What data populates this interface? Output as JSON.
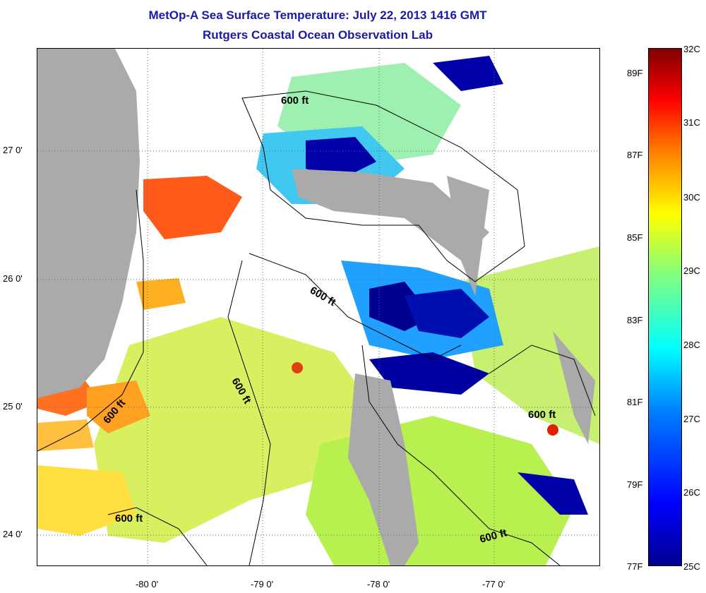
{
  "header": {
    "title": "MetOp-A Sea Surface Temperature:  July 22, 2013 1416 GMT",
    "subtitle": "Rutgers Coastal Ocean Observation Lab"
  },
  "axes": {
    "lat_labels": [
      "27 0'",
      "26 0'",
      "25 0'",
      "24 0'"
    ],
    "lon_labels": [
      "-80 0'",
      "-79 0'",
      "-78 0'",
      "-77 0'"
    ]
  },
  "contour_labels": [
    "600 ft",
    "600 ft",
    "600 ft",
    "600 ft",
    "600 ft",
    "600 ft",
    "600 ft"
  ],
  "colorbar": {
    "celsius": [
      "32C",
      "31C",
      "30C",
      "29C",
      "28C",
      "27C",
      "26C",
      "25C"
    ],
    "fahrenheit": [
      "89F",
      "87F",
      "85F",
      "83F",
      "81F",
      "79F",
      "77F"
    ]
  },
  "colors": {
    "land": "#aaaaaa",
    "title": "#1a1aa6",
    "sst_warm": "#ff5a00",
    "sst_mid": "#b8ff40",
    "sst_cool": "#40c0ff",
    "sst_cold": "#00008f"
  }
}
